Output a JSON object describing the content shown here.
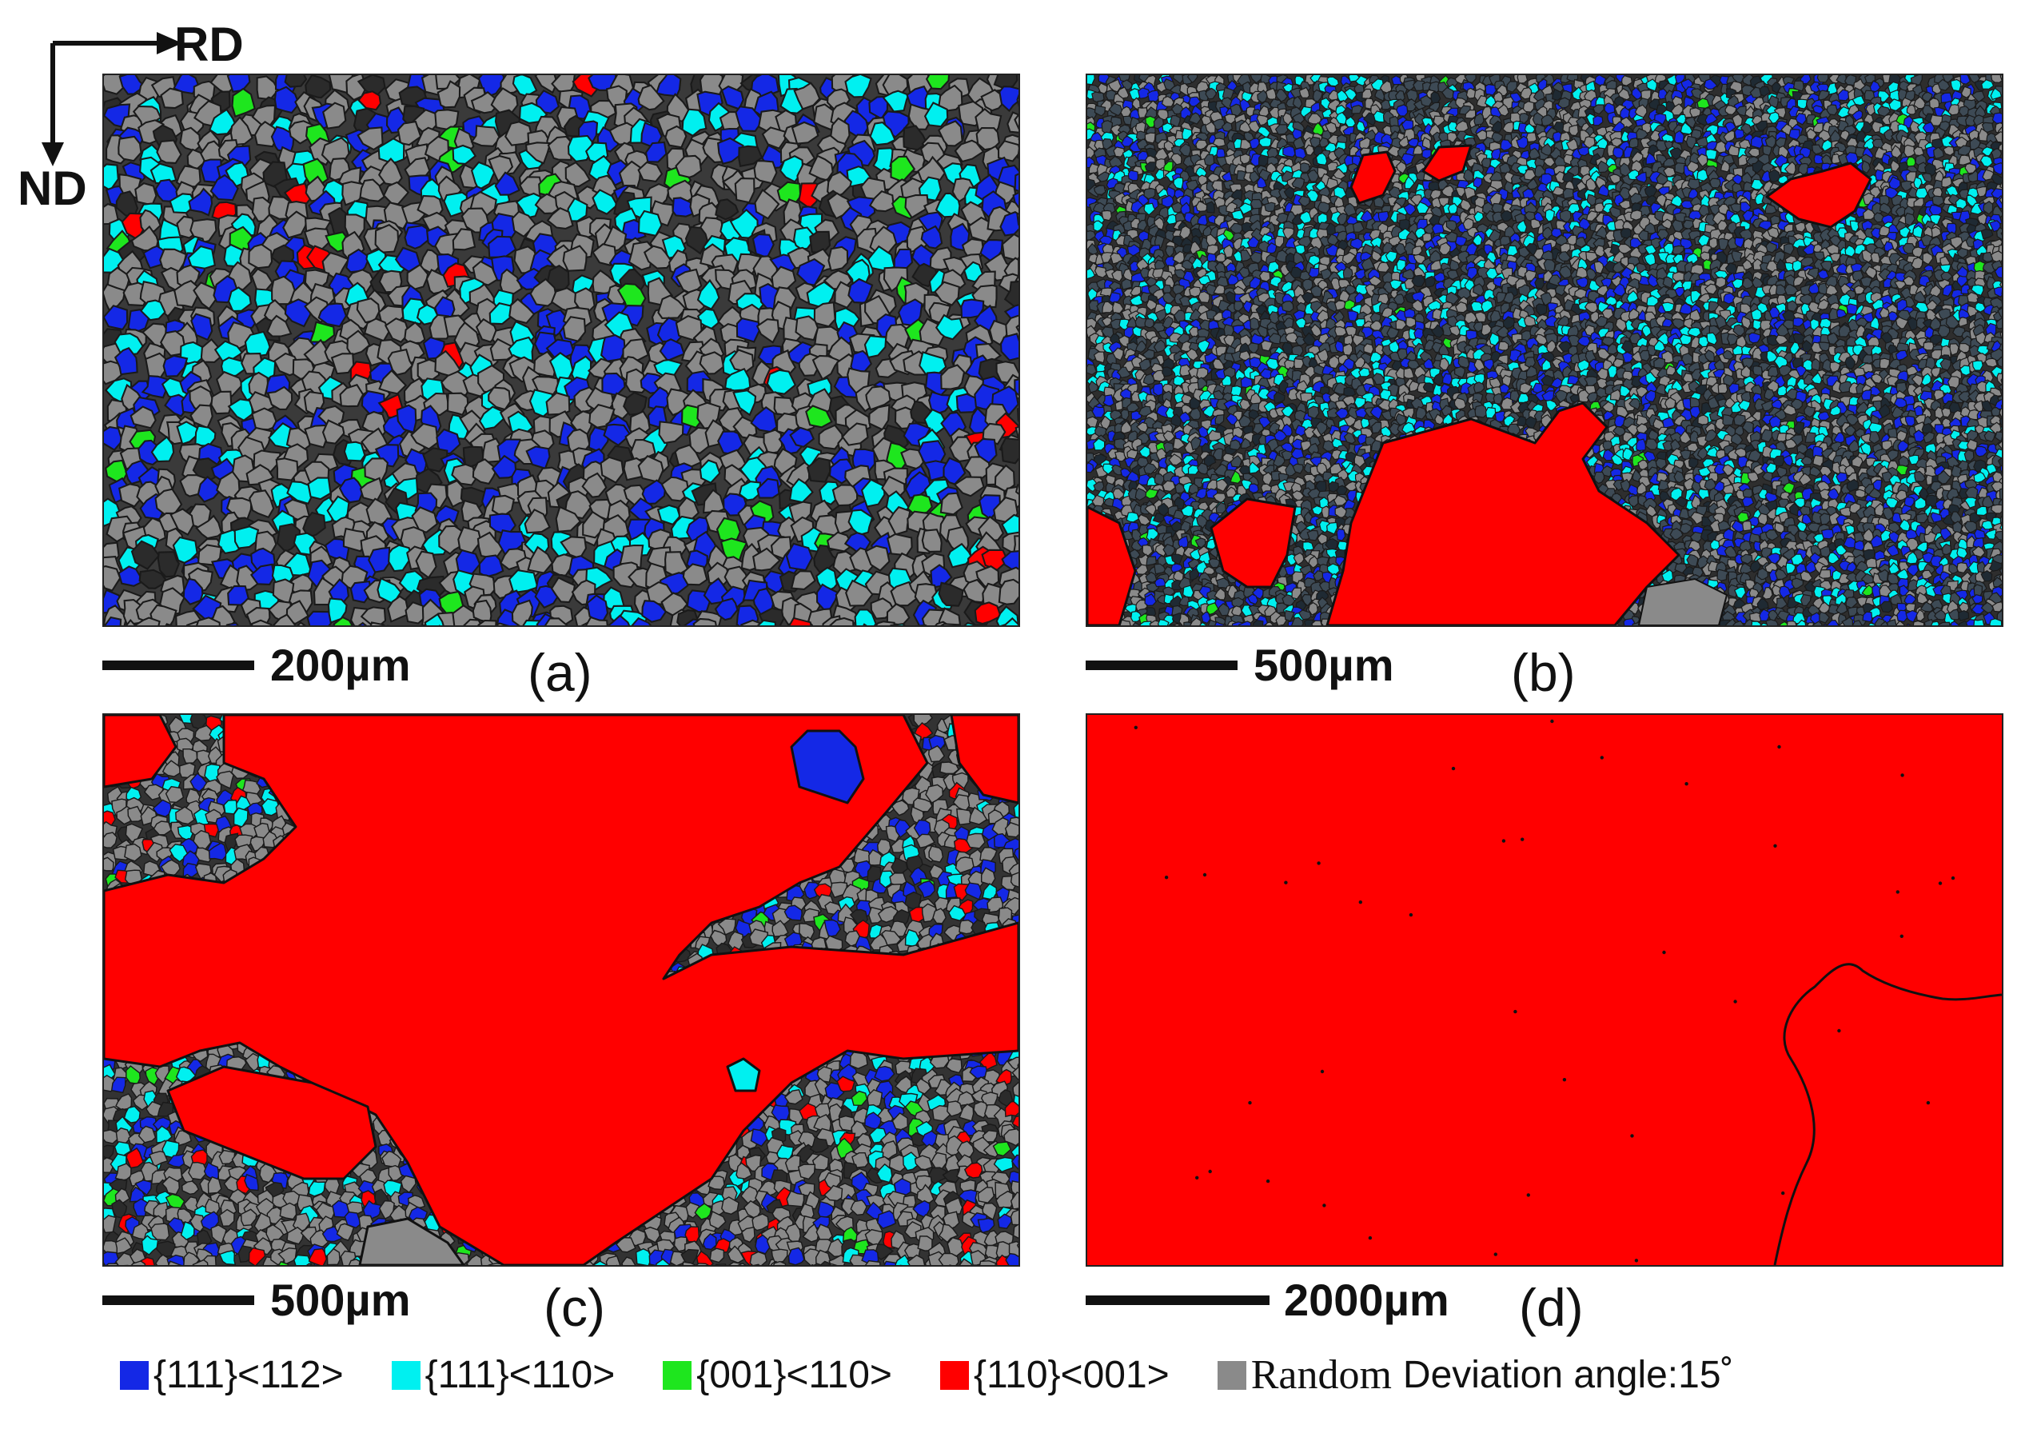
{
  "axes": {
    "horizontal": "RD",
    "vertical": "ND"
  },
  "panels": [
    {
      "label": "(a)",
      "scale": "200µm",
      "composition": "fine-mixed"
    },
    {
      "label": "(b)",
      "scale": "500µm",
      "composition": "fine-with-red-islands"
    },
    {
      "label": "(c)",
      "scale": "500µm",
      "composition": "mostly-red"
    },
    {
      "label": "(d)",
      "scale": "2000µm",
      "composition": "all-red"
    }
  ],
  "legend": {
    "items": [
      {
        "label": "{111}<112>",
        "color": "#1428e6"
      },
      {
        "label": "{111}<110>",
        "color": "#00f0f0"
      },
      {
        "label": "{001}<110>",
        "color": "#1ee61e"
      },
      {
        "label": "{110}<001>",
        "color": "#ff0000"
      },
      {
        "label": "Random",
        "color": "#8a8a8a"
      }
    ],
    "deviation": "Deviation angle:15˚"
  }
}
